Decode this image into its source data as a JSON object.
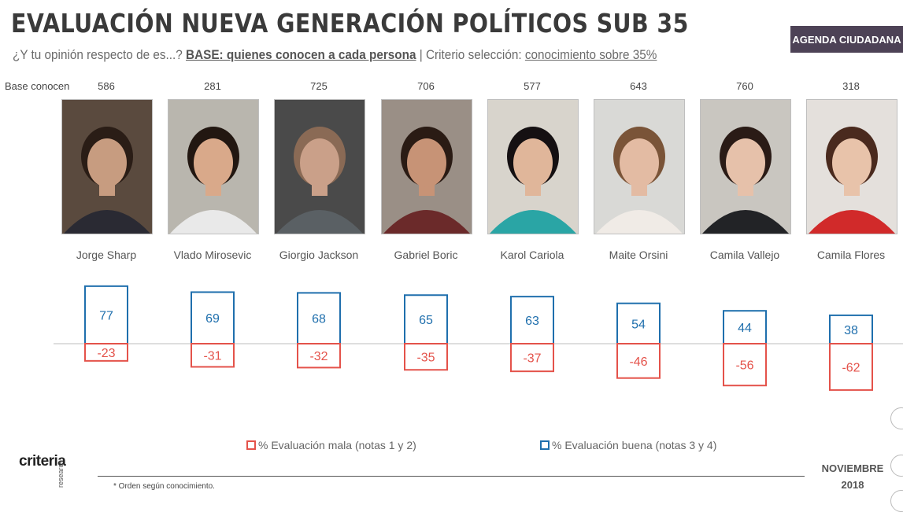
{
  "title": "EVALUACIÓN NUEVA GENERACIÓN POLÍTICOS SUB 35",
  "subtitle": {
    "question": "¿Y tu opinión respecto de es...?",
    "base": "BASE: quienes conocen a cada persona",
    "separator": "|",
    "criterion_label": "Criterio selección:",
    "criterion": "conocimiento sobre 35%"
  },
  "badge": "AGENDA CIUDADANA",
  "base_label": "Base conocen",
  "colors": {
    "good": "#1f6fad",
    "bad": "#e4524a",
    "axis": "#bdbdbd"
  },
  "chart_data": {
    "type": "bar",
    "categories": [
      "Jorge Sharp",
      "Vlado Mirosevic",
      "Giorgio Jackson",
      "Gabriel Boric",
      "Karol Cariola",
      "Maite Orsini",
      "Camila Vallejo",
      "Camila Flores"
    ],
    "base_counts": [
      586,
      281,
      725,
      706,
      577,
      643,
      760,
      318
    ],
    "series": [
      {
        "name": "% Evaluación buena (notas 3 y 4)",
        "color": "#1f6fad",
        "values": [
          77,
          69,
          68,
          65,
          63,
          54,
          44,
          38
        ]
      },
      {
        "name": "% Evaluación mala (notas 1 y 2)",
        "color": "#e4524a",
        "values": [
          -23,
          -31,
          -32,
          -35,
          -37,
          -46,
          -56,
          -62
        ]
      }
    ]
  },
  "legend": {
    "bad": "% Evaluación mala (notas 1 y 2)",
    "good": "% Evaluación buena (notas 3 y 4)"
  },
  "logo": {
    "name": "criteria",
    "sub": "research"
  },
  "footnote": "* Orden según conocimiento.",
  "date": {
    "month": "NOVIEMBRE",
    "year": "2018"
  }
}
